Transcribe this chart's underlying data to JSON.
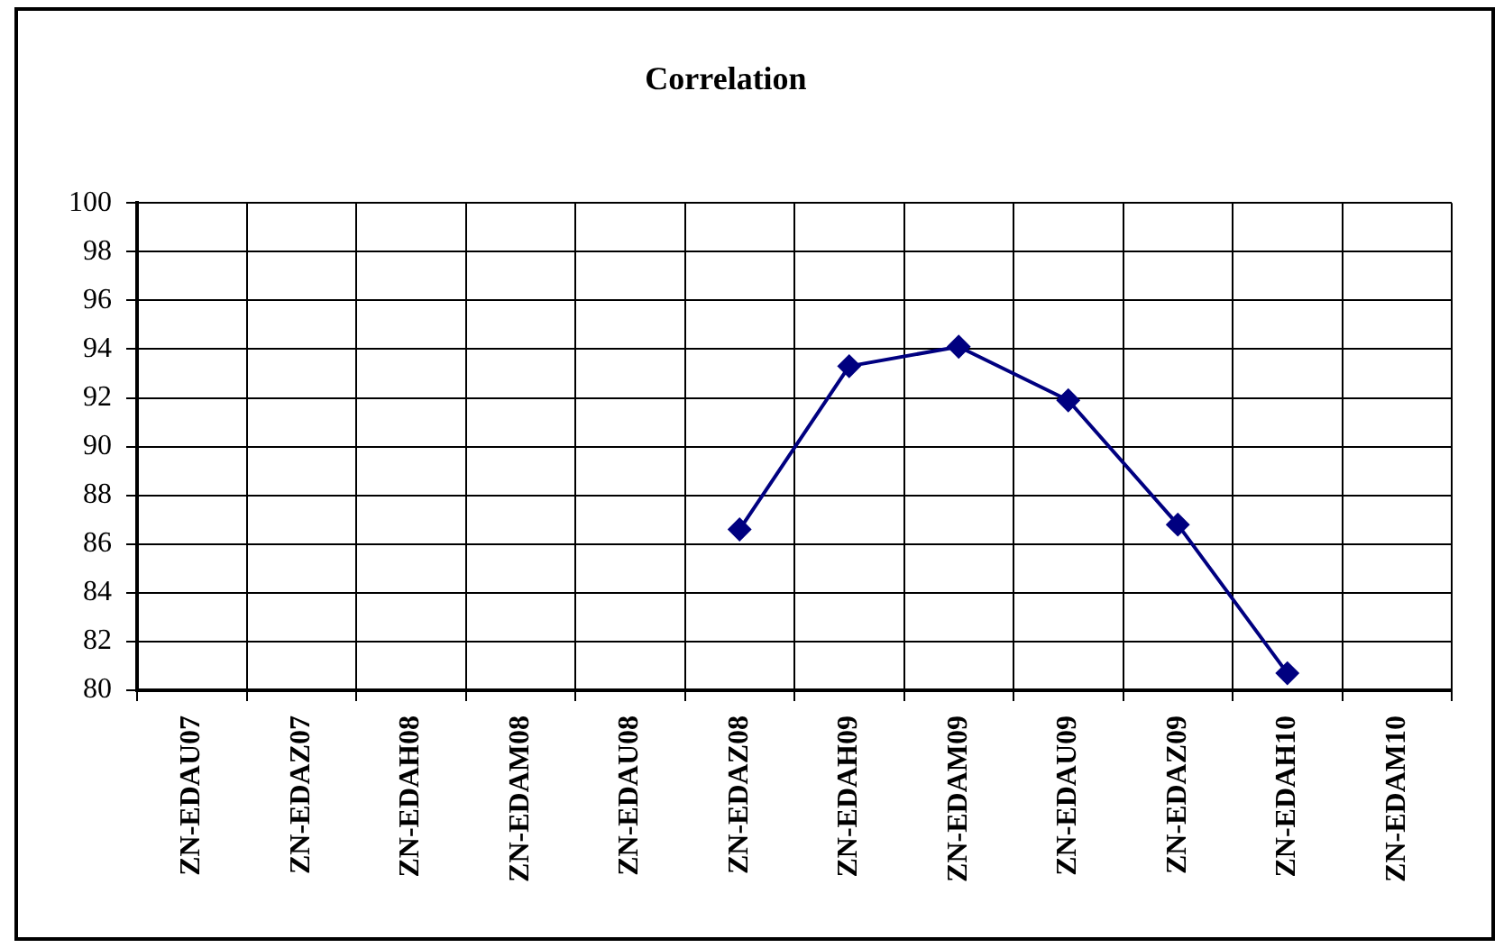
{
  "chart_data": {
    "type": "line",
    "title": "Correlation",
    "categories": [
      "ZN-EDAU07",
      "ZN-EDAZ07",
      "ZN-EDAH08",
      "ZN-EDAM08",
      "ZN-EDAU08",
      "ZN-EDAZ08",
      "ZN-EDAH09",
      "ZN-EDAM09",
      "ZN-EDAU09",
      "ZN-EDAZ09",
      "ZN-EDAH10",
      "ZN-EDAM10"
    ],
    "series": [
      {
        "color": "#000080",
        "values": [
          null,
          null,
          null,
          null,
          null,
          86.6,
          93.3,
          94.1,
          91.9,
          86.8,
          80.7,
          null
        ]
      }
    ],
    "ylim": [
      80,
      100
    ],
    "yticks": [
      80,
      82,
      84,
      86,
      88,
      90,
      92,
      94,
      96,
      98,
      100
    ],
    "grid": true,
    "legend": false,
    "marker": "diamond",
    "line_style": "solid"
  }
}
